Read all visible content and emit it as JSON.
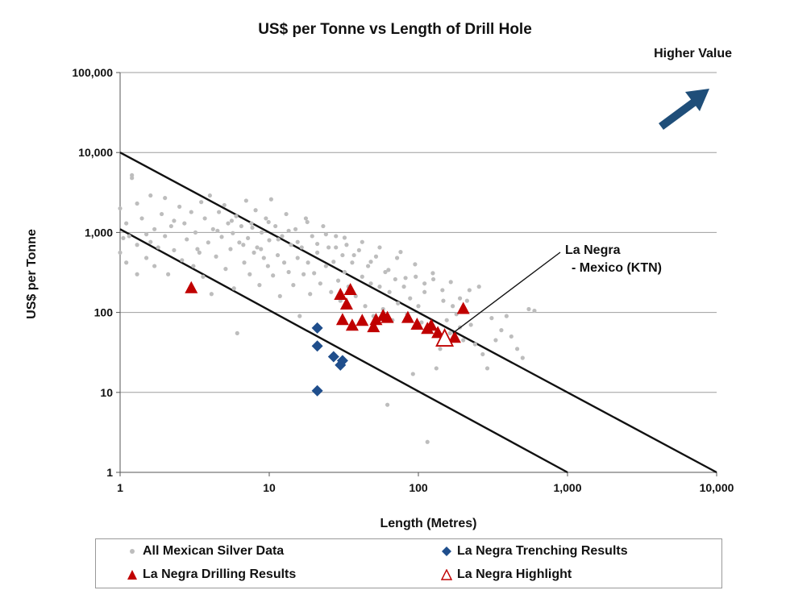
{
  "chart_data": {
    "type": "scatter",
    "title": "US$ per Tonne vs Length of Drill Hole",
    "xlabel": "Length (Metres)",
    "ylabel": "US$ per Tonne",
    "xscale": "log",
    "yscale": "log",
    "xlim": [
      1,
      10000
    ],
    "ylim": [
      1,
      100000
    ],
    "x_ticks": [
      1,
      10,
      100,
      1000,
      10000
    ],
    "x_tick_labels": [
      "1",
      "10",
      "100",
      "1,000",
      "10,000"
    ],
    "y_ticks": [
      1,
      10,
      100,
      1000,
      10000,
      100000
    ],
    "y_tick_labels": [
      "1",
      "10",
      "100",
      "1,000",
      "10,000",
      "100,000"
    ],
    "grid": "horizontal",
    "corner_note": "Higher Value",
    "annotation": {
      "line1": "La Negra",
      "line2": "- Mexico (KTN)",
      "points_to": [
        170,
        55
      ]
    },
    "reference_lines": [
      {
        "name": "upper-diagonal",
        "from": [
          1,
          10000
        ],
        "to": [
          10000,
          1
        ]
      },
      {
        "name": "lower-diagonal",
        "from": [
          1,
          1100
        ],
        "to": [
          1000,
          1
        ]
      }
    ],
    "legend_position": "bottom",
    "series": [
      {
        "name": "All  Mexican Silver Data",
        "marker": "dot",
        "color": "#bdbdbd",
        "points": [
          [
            1,
            560
          ],
          [
            1,
            2000
          ],
          [
            1.05,
            850
          ],
          [
            1.1,
            420
          ],
          [
            1.1,
            1300
          ],
          [
            1.2,
            4800
          ],
          [
            1.2,
            5200
          ],
          [
            1.3,
            2300
          ],
          [
            1.3,
            300
          ],
          [
            1.3,
            700
          ],
          [
            1.4,
            1500
          ],
          [
            1.5,
            950
          ],
          [
            1.5,
            480
          ],
          [
            1.6,
            2900
          ],
          [
            1.7,
            380
          ],
          [
            1.7,
            1100
          ],
          [
            1.8,
            650
          ],
          [
            1.9,
            1700
          ],
          [
            2,
            900
          ],
          [
            2,
            2700
          ],
          [
            2.1,
            300
          ],
          [
            2.2,
            1200
          ],
          [
            2.3,
            600
          ],
          [
            2.5,
            2100
          ],
          [
            2.6,
            450
          ],
          [
            2.7,
            1300
          ],
          [
            2.8,
            820
          ],
          [
            3,
            1800
          ],
          [
            3.1,
            380
          ],
          [
            3.2,
            1000
          ],
          [
            3.3,
            620
          ],
          [
            3.5,
            2400
          ],
          [
            3.6,
            280
          ],
          [
            3.7,
            1500
          ],
          [
            3.9,
            750
          ],
          [
            4,
            2900
          ],
          [
            4.1,
            170
          ],
          [
            4.2,
            1100
          ],
          [
            4.4,
            500
          ],
          [
            4.6,
            1800
          ],
          [
            4.8,
            880
          ],
          [
            5,
            2200
          ],
          [
            5.1,
            350
          ],
          [
            5.3,
            1300
          ],
          [
            5.5,
            620
          ],
          [
            5.7,
            980
          ],
          [
            5.8,
            200
          ],
          [
            6,
            1600
          ],
          [
            6.1,
            55
          ],
          [
            6.3,
            750
          ],
          [
            6.5,
            1200
          ],
          [
            6.8,
            420
          ],
          [
            7,
            2500
          ],
          [
            7.2,
            850
          ],
          [
            7.4,
            300
          ],
          [
            7.6,
            1300
          ],
          [
            7.9,
            560
          ],
          [
            8.1,
            1900
          ],
          [
            8.3,
            650
          ],
          [
            8.6,
            220
          ],
          [
            8.9,
            1000
          ],
          [
            9.2,
            480
          ],
          [
            9.5,
            1500
          ],
          [
            9.8,
            380
          ],
          [
            10,
            800
          ],
          [
            10.3,
            2600
          ],
          [
            10.6,
            290
          ],
          [
            11,
            1200
          ],
          [
            11.4,
            520
          ],
          [
            11.8,
            160
          ],
          [
            12.2,
            900
          ],
          [
            12.6,
            420
          ],
          [
            13,
            1700
          ],
          [
            13.5,
            320
          ],
          [
            14,
            700
          ],
          [
            14.5,
            220
          ],
          [
            15,
            1100
          ],
          [
            15.5,
            480
          ],
          [
            16,
            90
          ],
          [
            16.5,
            650
          ],
          [
            17,
            300
          ],
          [
            17.6,
            1500
          ],
          [
            18.2,
            420
          ],
          [
            18.8,
            170
          ],
          [
            19.4,
            900
          ],
          [
            20,
            310
          ],
          [
            21,
            560
          ],
          [
            22,
            230
          ],
          [
            23,
            1200
          ],
          [
            24,
            380
          ],
          [
            25,
            650
          ],
          [
            26,
            180
          ],
          [
            27,
            430
          ],
          [
            28,
            900
          ],
          [
            29,
            250
          ],
          [
            30,
            140
          ],
          [
            31,
            520
          ],
          [
            32,
            320
          ],
          [
            33,
            700
          ],
          [
            34,
            210
          ],
          [
            36,
            420
          ],
          [
            38,
            160
          ],
          [
            40,
            600
          ],
          [
            42,
            280
          ],
          [
            44,
            120
          ],
          [
            46,
            380
          ],
          [
            48,
            230
          ],
          [
            50,
            90
          ],
          [
            52,
            500
          ],
          [
            55,
            210
          ],
          [
            58,
            110
          ],
          [
            60,
            320
          ],
          [
            62,
            7
          ],
          [
            64,
            180
          ],
          [
            67,
            80
          ],
          [
            70,
            260
          ],
          [
            73,
            130
          ],
          [
            76,
            570
          ],
          [
            80,
            210
          ],
          [
            84,
            95
          ],
          [
            88,
            150
          ],
          [
            92,
            17
          ],
          [
            96,
            280
          ],
          [
            100,
            120
          ],
          [
            105,
            75
          ],
          [
            110,
            180
          ],
          [
            115,
            2.4
          ],
          [
            120,
            60
          ],
          [
            126,
            260
          ],
          [
            132,
            20
          ],
          [
            140,
            35
          ],
          [
            147,
            140
          ],
          [
            155,
            80
          ],
          [
            163,
            55
          ],
          [
            170,
            120
          ],
          [
            180,
            95
          ],
          [
            190,
            65
          ],
          [
            200,
            45
          ],
          [
            212,
            140
          ],
          [
            225,
            70
          ],
          [
            240,
            40
          ],
          [
            255,
            210
          ],
          [
            270,
            30
          ],
          [
            290,
            20
          ],
          [
            310,
            85
          ],
          [
            330,
            45
          ],
          [
            360,
            60
          ],
          [
            390,
            90
          ],
          [
            420,
            50
          ],
          [
            460,
            35
          ],
          [
            500,
            27
          ],
          [
            550,
            110
          ],
          [
            600,
            105
          ],
          [
            1.15,
            900
          ],
          [
            1.6,
            760
          ],
          [
            2.3,
            1400
          ],
          [
            3.4,
            560
          ],
          [
            4.5,
            1050
          ],
          [
            5.6,
            1400
          ],
          [
            6.7,
            700
          ],
          [
            7.7,
            1150
          ],
          [
            8.8,
            620
          ],
          [
            9.9,
            1350
          ],
          [
            11.5,
            820
          ],
          [
            13.5,
            1050
          ],
          [
            15.5,
            760
          ],
          [
            18,
            1350
          ],
          [
            21,
            720
          ],
          [
            24,
            950
          ],
          [
            28,
            650
          ],
          [
            32,
            860
          ],
          [
            37,
            520
          ],
          [
            42,
            760
          ],
          [
            48,
            430
          ],
          [
            55,
            650
          ],
          [
            63,
            340
          ],
          [
            72,
            480
          ],
          [
            82,
            270
          ],
          [
            95,
            400
          ],
          [
            110,
            230
          ],
          [
            125,
            310
          ],
          [
            145,
            190
          ],
          [
            165,
            240
          ],
          [
            190,
            150
          ],
          [
            220,
            190
          ]
        ]
      },
      {
        "name": "La Negra Trenching Results",
        "marker": "diamond",
        "color": "#1f4e8c",
        "points": [
          [
            21,
            64
          ],
          [
            21,
            38
          ],
          [
            21,
            10.5
          ],
          [
            27,
            28
          ],
          [
            30,
            22
          ],
          [
            31,
            25
          ]
        ]
      },
      {
        "name": "La Negra Drilling Results",
        "marker": "triangle",
        "color": "#c00000",
        "points": [
          [
            3,
            200
          ],
          [
            30,
            165
          ],
          [
            33,
            125
          ],
          [
            35,
            190
          ],
          [
            31,
            80
          ],
          [
            36,
            68
          ],
          [
            42,
            78
          ],
          [
            50,
            65
          ],
          [
            52,
            80
          ],
          [
            58,
            90
          ],
          [
            62,
            85
          ],
          [
            85,
            85
          ],
          [
            98,
            70
          ],
          [
            115,
            62
          ],
          [
            122,
            68
          ],
          [
            135,
            55
          ],
          [
            175,
            48
          ],
          [
            200,
            110
          ]
        ]
      },
      {
        "name": "La Negra Highlight",
        "marker": "triangle-open",
        "color": "#c00000",
        "points": [
          [
            150,
            46
          ]
        ]
      }
    ]
  }
}
